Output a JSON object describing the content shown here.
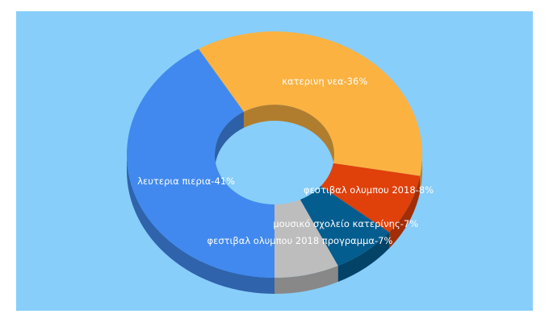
{
  "chart_data": {
    "type": "pie",
    "style": "3d-donut",
    "title": "",
    "background_color": "#87cefa",
    "slices": [
      {
        "label": "λευτερια πιερια-41%",
        "value": 41,
        "color": "#4189ee"
      },
      {
        "label": "κατερινη νεα-36%",
        "value": 36,
        "color": "#fbb241"
      },
      {
        "label": "φεστιβαλ ολυμπου 2018-8%",
        "value": 8,
        "color": "#e0400a"
      },
      {
        "label": "μουσικό σχολείο κατερίνης-7%",
        "value": 7,
        "color": "#045d8f"
      },
      {
        "label": "φεστιβαλ ολυμπου 2018 προγραμμα-7%",
        "value": 7,
        "color": "#bdbdbd"
      }
    ]
  }
}
